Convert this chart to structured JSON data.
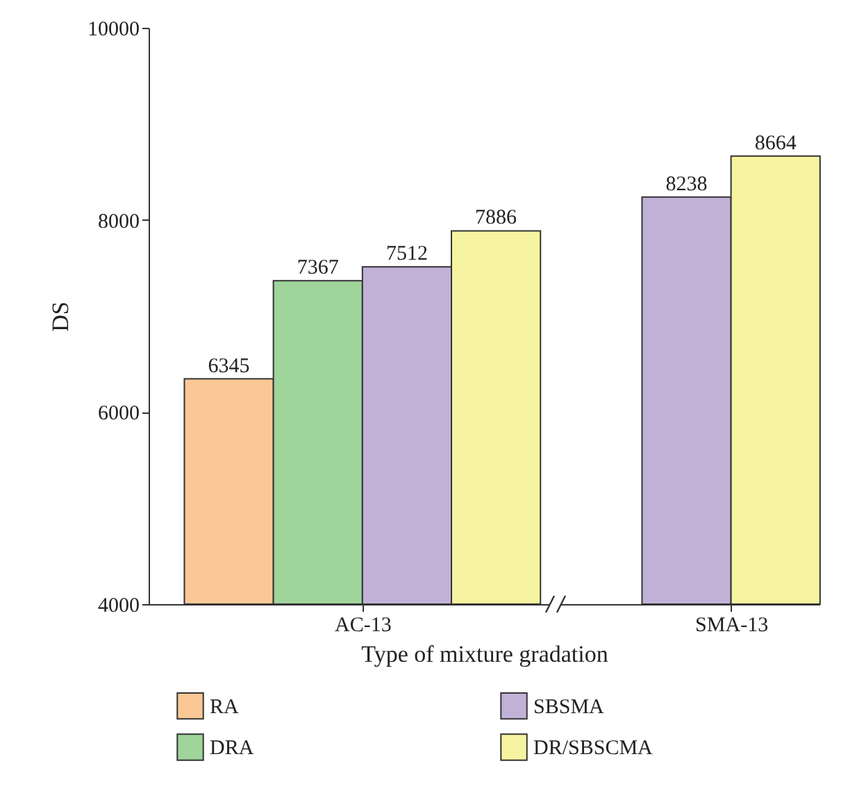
{
  "chart_data": {
    "type": "bar",
    "xlabel": "Type of mixture gradation",
    "ylabel": "DS",
    "categories": [
      "AC-13",
      "SMA-13"
    ],
    "series": [
      {
        "name": "RA",
        "color": "#f9c896",
        "values": [
          6345,
          null
        ]
      },
      {
        "name": "DRA",
        "color": "#9fd49b",
        "values": [
          7367,
          null
        ]
      },
      {
        "name": "SBSMA",
        "color": "#c1b1d7",
        "values": [
          7512,
          8238
        ]
      },
      {
        "name": "DR/SBSCMA",
        "color": "#f7f4a1",
        "values": [
          7886,
          8664
        ]
      }
    ],
    "ylim": [
      4000,
      10000
    ],
    "yticks": [
      4000,
      6000,
      8000,
      10000
    ],
    "data_labels": true,
    "legend": "bottom",
    "grid": false
  }
}
